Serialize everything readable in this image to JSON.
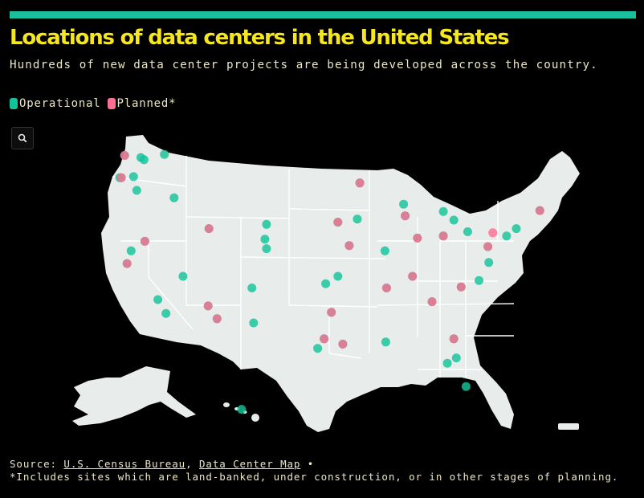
{
  "header": {
    "title": "Locations of data centers in the United States",
    "subtitle": "Hundreds of new data center projects are being developed across the country."
  },
  "legend": {
    "operational_label": "Operational",
    "planned_label": "Planned*"
  },
  "colors": {
    "accent_bar": "#1abf9e",
    "title": "#f5e61e",
    "operational": "#14c39a",
    "planned": "#ff6e93",
    "land": "#e8eceb",
    "borders": "#ffffff",
    "background": "#000000"
  },
  "icons": {
    "zoom": "search-icon"
  },
  "footer": {
    "source_prefix": "Source:",
    "source_link_1": "U.S. Census Bureau",
    "separator": ",",
    "source_link_2": "Data Center Map",
    "bullet": "•",
    "note": "*Includes sites which are land-banked, under construction, or in other stages of planning."
  },
  "map_data": {
    "operational_sites": [
      {
        "city": "Seattle",
        "lat": 47.6,
        "lon": -122.3
      },
      {
        "city": "Quincy",
        "lat": 47.2,
        "lon": -119.9
      },
      {
        "city": "Wenatchee",
        "lat": 47.4,
        "lon": -120.3
      },
      {
        "city": "Portland",
        "lat": 45.5,
        "lon": -122.7
      },
      {
        "city": "Hillsboro",
        "lat": 45.5,
        "lon": -122.9
      },
      {
        "city": "Prineville",
        "lat": 44.3,
        "lon": -120.8
      },
      {
        "city": "The Dalles",
        "lat": 45.6,
        "lon": -121.2
      },
      {
        "city": "Boise",
        "lat": 43.6,
        "lon": -116.2
      },
      {
        "city": "Spokane",
        "lat": 47.7,
        "lon": -117.4
      },
      {
        "city": "Bay Area",
        "lat": 37.4,
        "lon": -122.0
      },
      {
        "city": "Sacramento",
        "lat": 38.6,
        "lon": -121.5
      },
      {
        "city": "Los Angeles",
        "lat": 34.0,
        "lon": -118.2
      },
      {
        "city": "San Diego",
        "lat": 32.7,
        "lon": -117.2
      },
      {
        "city": "Reno",
        "lat": 39.5,
        "lon": -119.8
      },
      {
        "city": "Las Vegas",
        "lat": 36.2,
        "lon": -115.1
      },
      {
        "city": "Phoenix",
        "lat": 33.4,
        "lon": -112.0
      },
      {
        "city": "Tucson",
        "lat": 32.2,
        "lon": -110.9
      },
      {
        "city": "Salt Lake City",
        "lat": 40.7,
        "lon": -111.9
      },
      {
        "city": "Denver",
        "lat": 39.7,
        "lon": -105.0
      },
      {
        "city": "Colorado Springs",
        "lat": 38.8,
        "lon": -104.8
      },
      {
        "city": "Cheyenne",
        "lat": 41.1,
        "lon": -104.8
      },
      {
        "city": "Albuquerque",
        "lat": 35.1,
        "lon": -106.6
      },
      {
        "city": "Dallas",
        "lat": 32.8,
        "lon": -96.8
      },
      {
        "city": "Austin",
        "lat": 30.3,
        "lon": -97.7
      },
      {
        "city": "San Antonio",
        "lat": 29.4,
        "lon": -98.5
      },
      {
        "city": "Houston",
        "lat": 29.8,
        "lon": -95.4
      },
      {
        "city": "El Paso",
        "lat": 31.8,
        "lon": -106.4
      },
      {
        "city": "Oklahoma City",
        "lat": 35.5,
        "lon": -97.5
      },
      {
        "city": "Tulsa",
        "lat": 36.2,
        "lon": -96.0
      },
      {
        "city": "Kansas City",
        "lat": 39.1,
        "lon": -94.6
      },
      {
        "city": "Omaha",
        "lat": 41.3,
        "lon": -96.0
      },
      {
        "city": "Des Moines",
        "lat": 41.6,
        "lon": -93.6
      },
      {
        "city": "Minneapolis",
        "lat": 45.0,
        "lon": -93.3
      },
      {
        "city": "Chicago",
        "lat": 41.9,
        "lon": -87.7
      },
      {
        "city": "Milwaukee",
        "lat": 43.0,
        "lon": -87.9
      },
      {
        "city": "Detroit",
        "lat": 42.3,
        "lon": -83.0
      },
      {
        "city": "Columbus",
        "lat": 40.0,
        "lon": -83.0
      },
      {
        "city": "Cleveland",
        "lat": 41.5,
        "lon": -81.7
      },
      {
        "city": "Pittsburgh",
        "lat": 40.4,
        "lon": -80.0
      },
      {
        "city": "Indianapolis",
        "lat": 39.8,
        "lon": -86.2
      },
      {
        "city": "St. Louis",
        "lat": 38.6,
        "lon": -90.2
      },
      {
        "city": "Nashville",
        "lat": 36.2,
        "lon": -86.8
      },
      {
        "city": "Atlanta",
        "lat": 33.8,
        "lon": -84.4
      },
      {
        "city": "Charlotte",
        "lat": 35.2,
        "lon": -80.8
      },
      {
        "city": "Raleigh",
        "lat": 35.8,
        "lon": -78.6
      },
      {
        "city": "Ashburn",
        "lat": 39.0,
        "lon": -77.5
      },
      {
        "city": "Richmond",
        "lat": 37.5,
        "lon": -77.4
      },
      {
        "city": "Philadelphia",
        "lat": 40.0,
        "lon": -75.2
      },
      {
        "city": "New York",
        "lat": 40.7,
        "lon": -74.0
      },
      {
        "city": "Boston",
        "lat": 42.4,
        "lon": -71.1
      },
      {
        "city": "Miami",
        "lat": 25.8,
        "lon": -80.2
      },
      {
        "city": "Orlando",
        "lat": 28.5,
        "lon": -81.4
      },
      {
        "city": "Tampa",
        "lat": 28.0,
        "lon": -82.5
      },
      {
        "city": "Jacksonville",
        "lat": 30.3,
        "lon": -81.7
      },
      {
        "city": "New Orleans",
        "lat": 30.0,
        "lon": -90.1
      },
      {
        "city": "Memphis",
        "lat": 35.1,
        "lon": -90.0
      },
      {
        "city": "Honolulu",
        "lat": 21.3,
        "lon": -157.9
      }
    ],
    "planned_sites": [
      {
        "city": "Phoenix",
        "lat": 33.4,
        "lon": -112.0
      },
      {
        "city": "Dallas",
        "lat": 32.8,
        "lon": -96.8
      },
      {
        "city": "Northern Virginia",
        "lat": 39.0,
        "lon": -77.5
      },
      {
        "city": "Chicago",
        "lat": 41.9,
        "lon": -87.7
      },
      {
        "city": "Columbus",
        "lat": 40.0,
        "lon": -83.0
      },
      {
        "city": "Atlanta",
        "lat": 33.8,
        "lon": -84.4
      },
      {
        "city": "Salt Lake City",
        "lat": 40.7,
        "lon": -111.9
      },
      {
        "city": "Bay Area",
        "lat": 37.4,
        "lon": -122.0
      },
      {
        "city": "Portland",
        "lat": 45.5,
        "lon": -122.7
      },
      {
        "city": "Seattle",
        "lat": 47.6,
        "lon": -122.3
      },
      {
        "city": "Kansas City",
        "lat": 39.1,
        "lon": -94.6
      },
      {
        "city": "Austin",
        "lat": 30.3,
        "lon": -97.7
      },
      {
        "city": "Pennsylvania",
        "lat": 40.3,
        "lon": -76.9
      },
      {
        "city": "Charlotte",
        "lat": 35.2,
        "lon": -80.8
      },
      {
        "city": "Minneapolis",
        "lat": 45.0,
        "lon": -93.3
      },
      {
        "city": "Memphis",
        "lat": 35.1,
        "lon": -90.0
      },
      {
        "city": "Reno",
        "lat": 39.5,
        "lon": -119.8
      },
      {
        "city": "Tucson",
        "lat": 32.2,
        "lon": -110.9
      },
      {
        "city": "Omaha",
        "lat": 41.3,
        "lon": -96.0
      },
      {
        "city": "Indianapolis",
        "lat": 39.8,
        "lon": -86.2
      },
      {
        "city": "Boston",
        "lat": 42.4,
        "lon": -71.1
      },
      {
        "city": "Jacksonville",
        "lat": 30.3,
        "lon": -81.7
      },
      {
        "city": "Houston",
        "lat": 29.8,
        "lon": -95.4
      },
      {
        "city": "Nashville",
        "lat": 36.2,
        "lon": -86.8
      }
    ]
  }
}
